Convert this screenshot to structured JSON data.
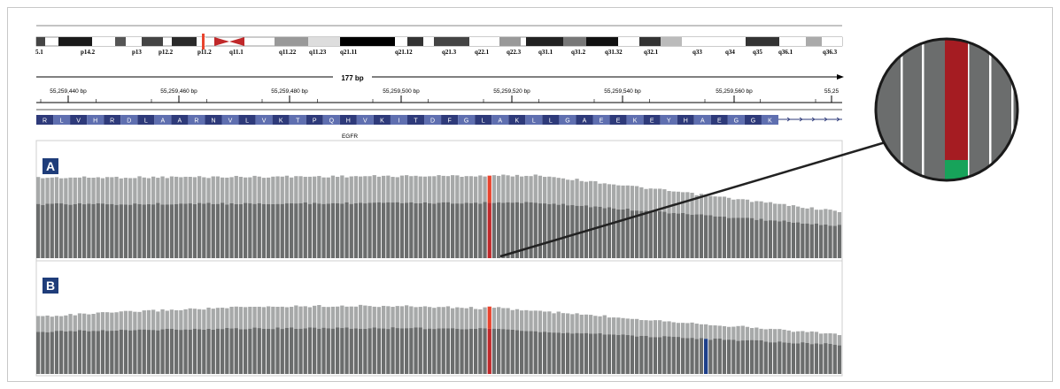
{
  "ideogram": {
    "bands": [
      "5.1",
      "p14.2",
      "p13",
      "p12.2",
      "p11.2",
      "q11.1",
      "q11.22",
      "q11.23",
      "q21.11",
      "q21.12",
      "q21.3",
      "q22.1",
      "q22.3",
      "q31.1",
      "q31.2",
      "q31.32",
      "q32.1",
      "q33",
      "q34",
      "q35",
      "q36.1",
      "q36.3"
    ]
  },
  "ruler": {
    "span_label": "177 bp",
    "ticks": [
      "55,259,440 bp",
      "55,259,460 bp",
      "55,259,480 bp",
      "55,259,500 bp",
      "55,259,520 bp",
      "55,259,540 bp",
      "55,259,560 bp",
      "55,25"
    ]
  },
  "gene": {
    "name": "EGFR",
    "amino_acids": [
      "R",
      "L",
      "V",
      "H",
      "R",
      "D",
      "L",
      "A",
      "A",
      "R",
      "N",
      "V",
      "L",
      "V",
      "K",
      "T",
      "P",
      "Q",
      "H",
      "V",
      "K",
      "I",
      "T",
      "D",
      "F",
      "G",
      "L",
      "A",
      "K",
      "L",
      "L",
      "G",
      "A",
      "E",
      "E",
      "K",
      "E",
      "Y",
      "H",
      "A",
      "E",
      "G",
      "G",
      "K"
    ]
  },
  "tracks": [
    {
      "label": "A"
    },
    {
      "label": "B"
    }
  ],
  "colors": {
    "coverage_dark": "#6b6d6d",
    "coverage_light": "#a7a9a9",
    "mismatch_red": "#c0282a",
    "mismatch_bright": "#e8442e",
    "mismatch_blue": "#1e3f8a",
    "zoom_red": "#a51c22",
    "zoom_green": "#17a35a",
    "aa_dark": "#2e3a7a",
    "aa_light": "#5f6fb0",
    "label_bg": "#1f3d7a"
  }
}
